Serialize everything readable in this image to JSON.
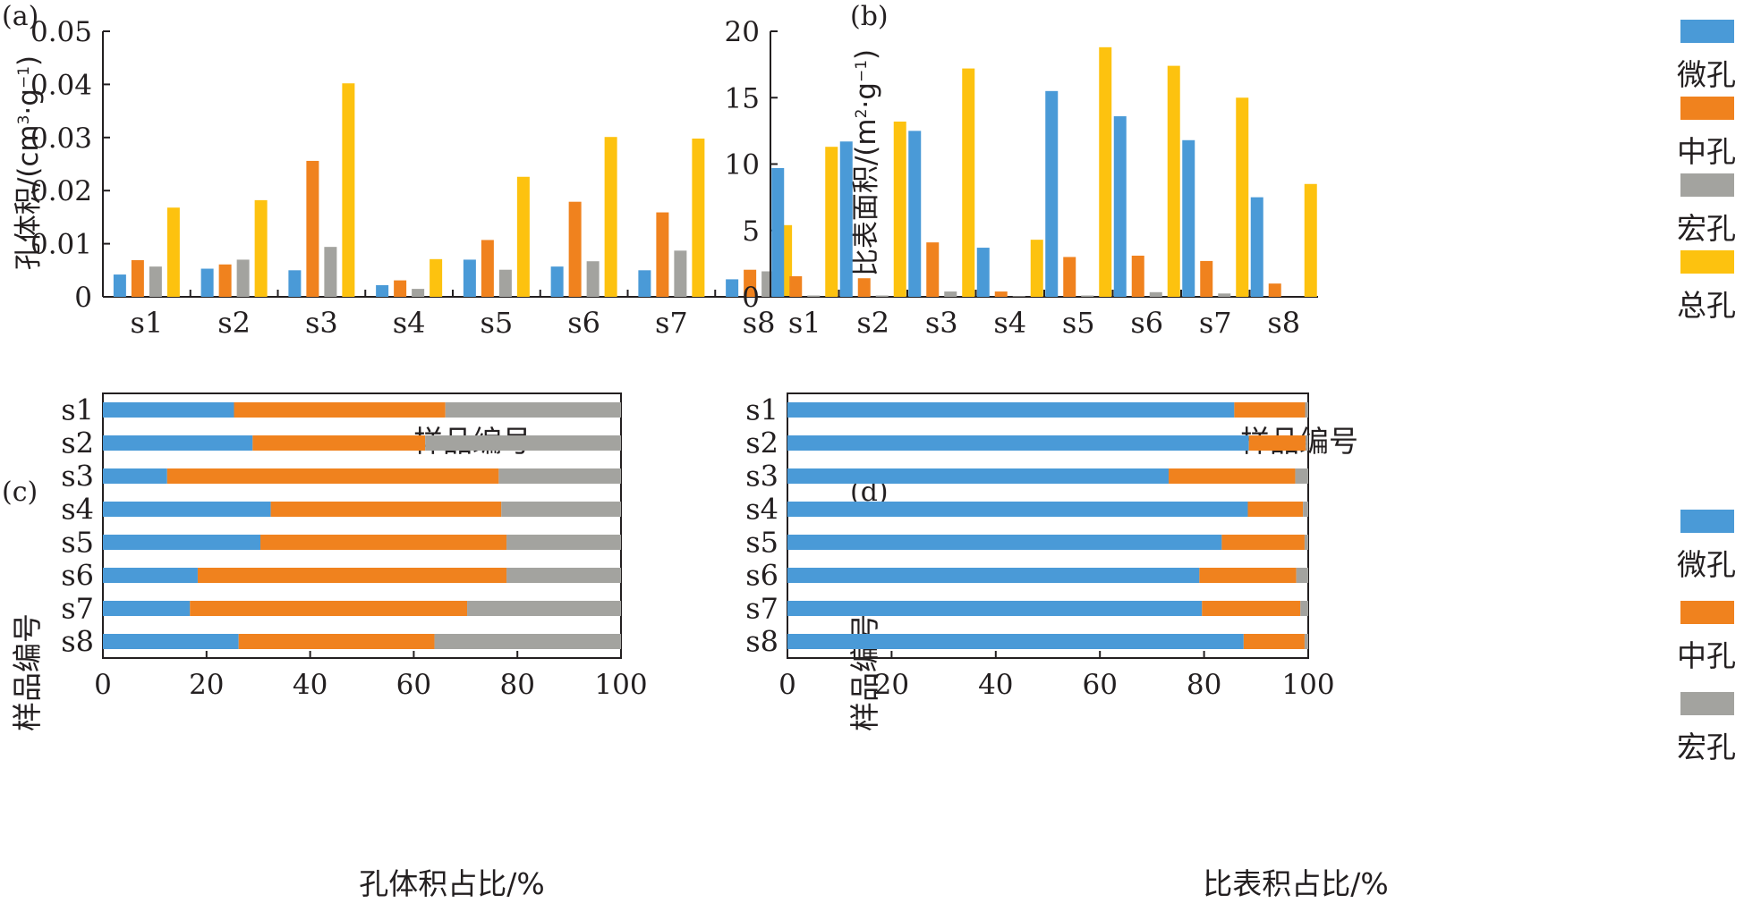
{
  "colors": {
    "micro": "#4a9ad7",
    "meso": "#f0821e",
    "macro": "#a3a39f",
    "total": "#fdc20f",
    "axis": "#231f20"
  },
  "legend": {
    "items": [
      {
        "key": "micro",
        "label": "微孔"
      },
      {
        "key": "meso",
        "label": "中孔"
      },
      {
        "key": "macro",
        "label": "宏孔"
      },
      {
        "key": "total",
        "label": "总孔"
      }
    ]
  },
  "chart_data": [
    {
      "panel": "(a)",
      "type": "bar",
      "title": "",
      "xlabel": "样品编号",
      "ylabel_parts": [
        "孔体积/(cm",
        "3",
        "·g",
        "−1",
        ")"
      ],
      "categories": [
        "s1",
        "s2",
        "s3",
        "s4",
        "s5",
        "s6",
        "s7",
        "s8"
      ],
      "ylim": [
        0,
        0.05
      ],
      "yticks": [
        0,
        0.01,
        0.02,
        0.03,
        0.04,
        0.05
      ],
      "ytick_labels": [
        "0",
        "0.01",
        "0.02",
        "0.03",
        "0.04",
        "0.05"
      ],
      "series": [
        {
          "name": "微孔",
          "key": "micro",
          "values": [
            0.0042,
            0.0053,
            0.005,
            0.0022,
            0.007,
            0.0057,
            0.005,
            0.0033
          ]
        },
        {
          "name": "中孔",
          "key": "meso",
          "values": [
            0.0069,
            0.0061,
            0.0256,
            0.0031,
            0.0107,
            0.0179,
            0.0159,
            0.0051
          ]
        },
        {
          "name": "宏孔",
          "key": "macro",
          "values": [
            0.0057,
            0.007,
            0.0094,
            0.0015,
            0.0051,
            0.0067,
            0.0087,
            0.0048
          ]
        },
        {
          "name": "总孔",
          "key": "total",
          "values": [
            0.0168,
            0.0182,
            0.0402,
            0.0071,
            0.0226,
            0.0301,
            0.0298,
            0.0135
          ]
        }
      ]
    },
    {
      "panel": "(b)",
      "type": "bar",
      "title": "",
      "xlabel": "样品编号",
      "ylabel_parts": [
        "比表面积/(m",
        "2",
        "·g",
        "−1",
        ")"
      ],
      "categories": [
        "s1",
        "s2",
        "s3",
        "s4",
        "s5",
        "s6",
        "s7",
        "s8"
      ],
      "ylim": [
        0,
        20
      ],
      "yticks": [
        0,
        5,
        10,
        15,
        20
      ],
      "ytick_labels": [
        "0",
        "5",
        "10",
        "15",
        "20"
      ],
      "series": [
        {
          "name": "微孔",
          "key": "micro",
          "values": [
            9.7,
            11.7,
            12.5,
            3.7,
            15.5,
            13.6,
            11.8,
            7.5
          ]
        },
        {
          "name": "中孔",
          "key": "meso",
          "values": [
            1.55,
            1.4,
            4.1,
            0.4,
            3.0,
            3.1,
            2.7,
            1.0
          ]
        },
        {
          "name": "宏孔",
          "key": "macro",
          "values": [
            0.1,
            0.1,
            0.4,
            0.05,
            0.1,
            0.35,
            0.25,
            0.0
          ]
        },
        {
          "name": "总孔",
          "key": "total",
          "values": [
            11.3,
            13.2,
            17.2,
            4.3,
            18.8,
            17.4,
            15.0,
            8.5
          ]
        }
      ]
    },
    {
      "panel": "(c)",
      "type": "bar",
      "orientation": "horizontal-stacked",
      "title": "",
      "xlabel": "孔体积占比/%",
      "ylabel": "样品编号",
      "categories": [
        "s1",
        "s2",
        "s3",
        "s4",
        "s5",
        "s6",
        "s7",
        "s8"
      ],
      "xlim": [
        0,
        100
      ],
      "xticks": [
        0,
        20,
        40,
        60,
        80,
        100
      ],
      "xtick_labels": [
        "0",
        "20",
        "40",
        "60",
        "80",
        "100"
      ],
      "series": [
        {
          "name": "微孔",
          "key": "micro",
          "values": [
            25.3,
            28.9,
            12.4,
            32.4,
            30.4,
            18.3,
            16.8,
            26.2
          ]
        },
        {
          "name": "中孔",
          "key": "meso",
          "values": [
            40.8,
            33.3,
            64.0,
            44.5,
            47.5,
            59.6,
            53.5,
            37.8
          ]
        },
        {
          "name": "宏孔",
          "key": "macro",
          "values": [
            33.9,
            37.8,
            23.6,
            23.1,
            22.1,
            22.1,
            29.7,
            36.0
          ]
        }
      ]
    },
    {
      "panel": "(d)",
      "type": "bar",
      "orientation": "horizontal-stacked",
      "title": "",
      "xlabel": "比表积占比/%",
      "ylabel": "样品编号",
      "categories": [
        "s1",
        "s2",
        "s3",
        "s4",
        "s5",
        "s6",
        "s7",
        "s8"
      ],
      "xlim": [
        0,
        100
      ],
      "xticks": [
        0,
        20,
        40,
        60,
        80,
        100
      ],
      "xtick_labels": [
        "0",
        "20",
        "40",
        "60",
        "80",
        "100"
      ],
      "series": [
        {
          "name": "微孔",
          "key": "micro",
          "values": [
            85.8,
            88.6,
            73.2,
            88.4,
            83.4,
            79.1,
            79.6,
            87.6
          ]
        },
        {
          "name": "中孔",
          "key": "meso",
          "values": [
            13.6,
            10.9,
            24.3,
            10.6,
            15.9,
            18.6,
            18.9,
            11.7
          ]
        },
        {
          "name": "宏孔",
          "key": "macro",
          "values": [
            0.6,
            0.5,
            2.5,
            1.0,
            0.7,
            2.3,
            1.5,
            0.7
          ]
        }
      ]
    }
  ]
}
